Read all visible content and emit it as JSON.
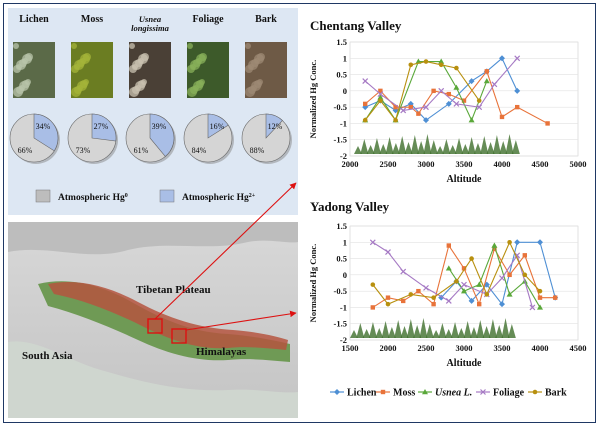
{
  "specimens": {
    "labels": [
      "Lichen",
      "Moss",
      "Usnea longissima",
      "Foliage",
      "Bark"
    ],
    "label_lines": [
      [
        "Lichen"
      ],
      [
        "Moss"
      ],
      [
        "Usnea",
        "longissima"
      ],
      [
        "Foliage"
      ],
      [
        "Bark"
      ]
    ]
  },
  "pies": [
    {
      "label_top": "34%",
      "label_bottom": "66%",
      "value_hg2": 34
    },
    {
      "label_top": "27%",
      "label_bottom": "73%",
      "value_hg2": 27
    },
    {
      "label_top": "39%",
      "label_bottom": "61%",
      "value_hg2": 39
    },
    {
      "label_top": "16%",
      "label_bottom": "84%",
      "value_hg2": 16
    },
    {
      "label_top": "12%",
      "label_bottom": "88%",
      "value_hg2": 12
    }
  ],
  "pie_legend": {
    "hg0": {
      "text": "Atmospheric Hg",
      "sup": "0",
      "color": "#9a9a9a"
    },
    "hg2": {
      "text": "Atmospheric Hg",
      "sup": "2+",
      "color": "#6f8fcf"
    }
  },
  "map": {
    "tibetan_plateau": "Tibetan Plateau",
    "south_asia": "South Asia",
    "himalayas": "Himalayas"
  },
  "chart_data": [
    {
      "type": "line",
      "title": "Chentang Valley",
      "xlabel": "Altitude",
      "ylabel": "Normalized Hg Conc.",
      "xlim": [
        2000,
        5000
      ],
      "ylim": [
        -2,
        1.5
      ],
      "xticks": [
        "2000",
        "2500",
        "3000",
        "3500",
        "4000",
        "4500",
        "5000"
      ],
      "yticks": [
        "-2",
        "-1.5",
        "-1",
        "-0.5",
        "0",
        "0.5",
        "1",
        "1.5"
      ],
      "series": [
        {
          "name": "Lichen",
          "color": "#4e8fd4",
          "marker": "diamond",
          "x": [
            2200,
            2400,
            2600,
            2800,
            3000,
            3300,
            3600,
            3800,
            4000,
            4200
          ],
          "y": [
            -0.5,
            -0.3,
            -0.6,
            -0.4,
            -0.9,
            -0.4,
            0.3,
            0.6,
            1.0,
            0.0
          ]
        },
        {
          "name": "Moss",
          "color": "#e8733a",
          "marker": "square",
          "x": [
            2200,
            2400,
            2600,
            2800,
            2900,
            3100,
            3300,
            3500,
            3800,
            4000,
            4200,
            4600
          ],
          "y": [
            -0.4,
            0.0,
            -0.5,
            -0.5,
            -0.7,
            0.0,
            -0.1,
            -0.3,
            0.6,
            -0.8,
            -0.5,
            -1.0
          ]
        },
        {
          "name": "Usnea L.",
          "color": "#5aa83a",
          "marker": "triangle",
          "x": [
            2200,
            2400,
            2600,
            2900,
            3200,
            3400,
            3600,
            3800
          ],
          "y": [
            -0.9,
            -0.2,
            -0.9,
            0.9,
            0.9,
            0.1,
            -0.9,
            0.3
          ]
        },
        {
          "name": "Foliage",
          "color": "#a67ac4",
          "marker": "x",
          "x": [
            2200,
            2400,
            2700,
            3000,
            3200,
            3400,
            3700,
            3900,
            4200
          ],
          "y": [
            0.3,
            -0.1,
            -0.6,
            -0.5,
            0.0,
            -0.4,
            -0.5,
            0.2,
            1.0
          ]
        },
        {
          "name": "Bark",
          "color": "#b8900f",
          "marker": "circle",
          "x": [
            2200,
            2400,
            2600,
            2800,
            3000,
            3200,
            3400,
            3700
          ],
          "y": [
            -0.9,
            -0.3,
            -0.9,
            0.8,
            0.9,
            0.8,
            0.7,
            -0.3
          ]
        }
      ]
    },
    {
      "type": "line",
      "title": "Yadong Valley",
      "xlabel": "Altitude",
      "ylabel": "Normalized Hg Conc.",
      "xlim": [
        1500,
        4500
      ],
      "ylim": [
        -2,
        1.5
      ],
      "xticks": [
        "1500",
        "2000",
        "2500",
        "3000",
        "3500",
        "4000",
        "4500"
      ],
      "yticks": [
        "-2",
        "-1.5",
        "-1",
        "-0.5",
        "0",
        "0.5",
        "1",
        "1.5"
      ],
      "series": [
        {
          "name": "Lichen",
          "color": "#4e8fd4",
          "marker": "diamond",
          "x": [
            2700,
            2900,
            3100,
            3300,
            3500,
            3700,
            4000,
            4200
          ],
          "y": [
            -0.7,
            -0.2,
            -0.8,
            -0.3,
            -0.9,
            1.0,
            1.0,
            -0.7
          ]
        },
        {
          "name": "Moss",
          "color": "#e8733a",
          "marker": "square",
          "x": [
            1800,
            2000,
            2200,
            2400,
            2600,
            2800,
            3000,
            3200,
            3400,
            3600,
            3800,
            4000,
            4200
          ],
          "y": [
            -1.0,
            -0.7,
            -0.8,
            -0.5,
            -0.9,
            0.9,
            0.2,
            -0.9,
            0.8,
            0.0,
            0.6,
            -0.7,
            -0.7
          ]
        },
        {
          "name": "Usnea L.",
          "color": "#5aa83a",
          "marker": "triangle",
          "x": [
            2800,
            3000,
            3200,
            3400,
            3600,
            3800,
            4000
          ],
          "y": [
            0.2,
            -0.5,
            -0.3,
            0.9,
            -0.6,
            -0.2,
            -1.0
          ]
        },
        {
          "name": "Foliage",
          "color": "#a67ac4",
          "marker": "x",
          "x": [
            1800,
            2000,
            2200,
            2500,
            2800,
            3000,
            3300,
            3500,
            3700,
            3900
          ],
          "y": [
            1.0,
            0.7,
            0.1,
            -0.4,
            -0.8,
            -0.3,
            -0.6,
            -0.1,
            0.6,
            -1.0
          ]
        },
        {
          "name": "Bark",
          "color": "#b8900f",
          "marker": "circle",
          "x": [
            1800,
            2000,
            2300,
            2600,
            2900,
            3100,
            3300,
            3600,
            3800,
            4000
          ],
          "y": [
            -0.3,
            -0.9,
            -0.6,
            -0.7,
            -0.2,
            0.5,
            -0.6,
            1.0,
            0.0,
            -0.5
          ]
        }
      ]
    }
  ]
}
